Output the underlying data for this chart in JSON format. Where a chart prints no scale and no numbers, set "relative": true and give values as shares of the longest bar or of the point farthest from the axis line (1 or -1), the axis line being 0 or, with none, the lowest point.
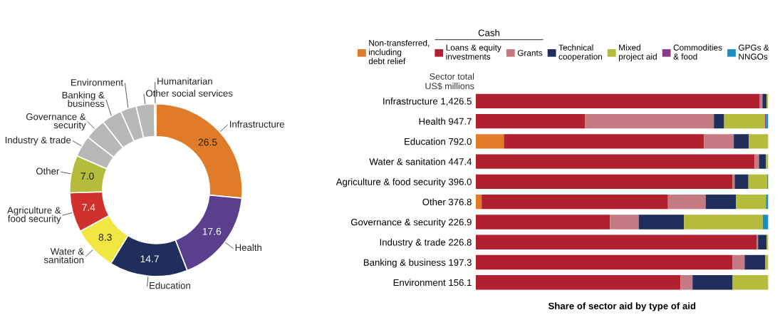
{
  "chart_data": [
    {
      "type": "donut",
      "categories": [
        "Infrastructure",
        "Health",
        "Education",
        "Water &\nsanitation",
        "Agriculture &\nfood security",
        "Other",
        "Industry & trade",
        "Governance &\nsecurity",
        "Banking &\nbusiness",
        "Environment",
        "Other social services",
        "Humanitarian"
      ],
      "values": [
        26.5,
        17.6,
        14.7,
        8.3,
        7.4,
        7.0,
        4.0,
        4.0,
        3.8,
        3.0,
        3.4,
        0.3
      ],
      "value_labels": [
        "26.5",
        "17.6",
        "14.7",
        "8.3",
        "7.4",
        "7.0",
        null,
        null,
        null,
        null,
        null,
        null
      ],
      "colors": [
        "#e07b2a",
        "#5b3f8f",
        "#1f2e5a",
        "#f2e640",
        "#d0312d",
        "#b5bb3a",
        "#b8b8b8",
        "#b8b8b8",
        "#b8b8b8",
        "#b8b8b8",
        "#b8b8b8",
        "#b8b8b8"
      ],
      "title": null
    },
    {
      "type": "bar",
      "orientation": "horizontal",
      "stacked": true,
      "relative": true,
      "categories": [
        "Infrastructure 1,426.5",
        "Health 947.7",
        "Education 792.0",
        "Water & sanitation 447.4",
        "Agriculture & food security 396.0",
        "Other 376.8",
        "Governance & security 226.9",
        "Industry & trade 226.8",
        "Banking & business 197.3",
        "Environment 156.1"
      ],
      "xlabel": "Share of sector aid by type of aid",
      "annotations": [
        "Sector total\nUS$ millions",
        "Cash"
      ],
      "legend": "top",
      "series": [
        {
          "name": "Non-transferred,\nincluding\ndebt relief",
          "color": "#e07b2a",
          "values": [
            0,
            0,
            0.096,
            0,
            0,
            0.02,
            0,
            0,
            0,
            0
          ]
        },
        {
          "name": "Loans & equity\ninvestments",
          "color": "#b0202f",
          "values": [
            0.971,
            0.373,
            0.684,
            0.953,
            0.878,
            0.637,
            0.459,
            0.961,
            0.878,
            0.7
          ]
        },
        {
          "name": "Grants",
          "color": "#c47a80",
          "values": [
            0.009,
            0.441,
            0.102,
            0.015,
            0.007,
            0.129,
            0.098,
            0.004,
            0.041,
            0.041
          ]
        },
        {
          "name": "Technical\ncooperation",
          "color": "#1f2e5a",
          "values": [
            0.014,
            0.035,
            0.051,
            0.024,
            0.047,
            0.104,
            0.155,
            0.029,
            0.071,
            0.137
          ]
        },
        {
          "name": "Mixed\nproject aid",
          "color": "#b5bb3a",
          "values": [
            0.006,
            0.14,
            0.067,
            0.008,
            0.064,
            0.102,
            0.269,
            0.006,
            0.01,
            0.122
          ]
        },
        {
          "name": "Commodities\n& food",
          "color": "#8a3a8a",
          "values": [
            0,
            0.004,
            0,
            0,
            0,
            0,
            0,
            0,
            0,
            0
          ]
        },
        {
          "name": "GPGs &\nNNGOs",
          "color": "#1a8fc0",
          "values": [
            0,
            0.007,
            0,
            0,
            0.004,
            0.008,
            0.019,
            0,
            0,
            0
          ]
        }
      ]
    }
  ]
}
